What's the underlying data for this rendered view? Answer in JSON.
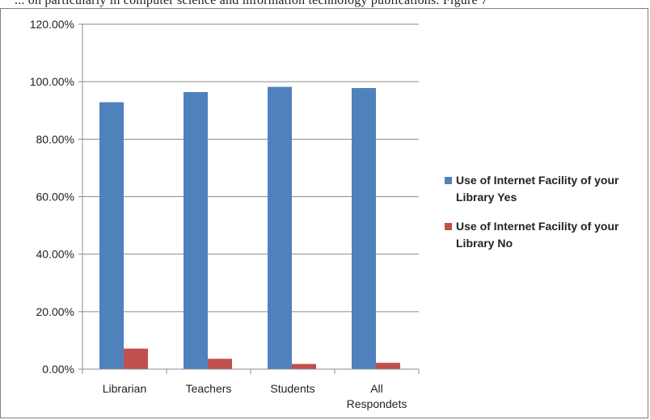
{
  "header_snippet": "... on particularly in computer science and information technology publications. Figure 7",
  "chart_data": {
    "type": "bar",
    "title": "",
    "xlabel": "",
    "ylabel": "",
    "categories": [
      "Librarian",
      "Teachers",
      "Students",
      "All Respondets"
    ],
    "category_lines": [
      [
        "Librarian"
      ],
      [
        "Teachers"
      ],
      [
        "Students"
      ],
      [
        "All",
        "Respondets"
      ]
    ],
    "series": [
      {
        "name_lines": [
          "Use of Internet Facility of your",
          "Library Yes"
        ],
        "color": "#4f81bd",
        "values": [
          92.86,
          96.4,
          98.2,
          97.8
        ]
      },
      {
        "name_lines": [
          "Use of Internet Facility of your",
          "Library No"
        ],
        "color": "#c0504d",
        "values": [
          7.14,
          3.6,
          1.8,
          2.2
        ]
      }
    ],
    "ylim": [
      0,
      120
    ],
    "yticks": [
      "0.00%",
      "20.00%",
      "40.00%",
      "60.00%",
      "80.00%",
      "100.00%",
      "120.00%"
    ],
    "grid": true,
    "legend_position": "right"
  }
}
